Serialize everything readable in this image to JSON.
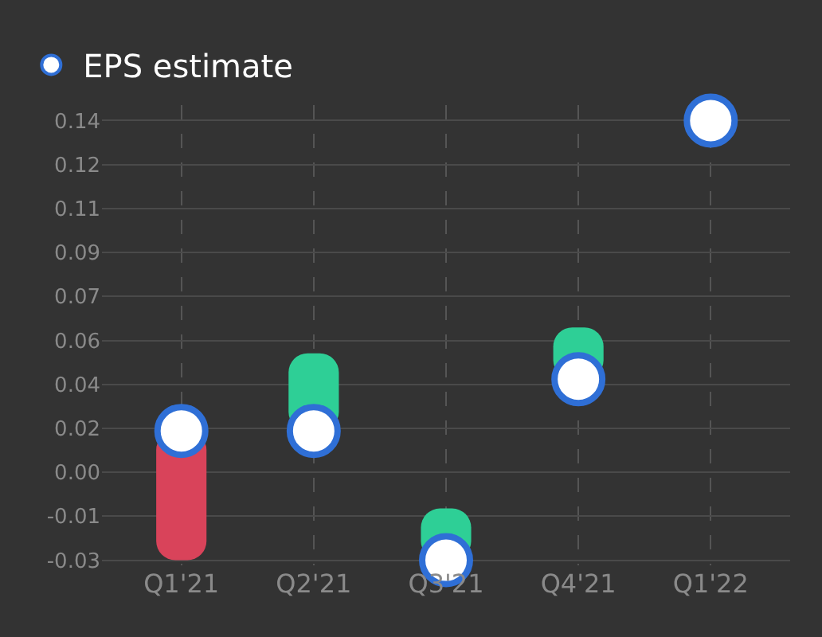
{
  "chart_data": {
    "type": "bar",
    "categories": [
      "Q1'21",
      "Q2'21",
      "Q3'21",
      "Q4'21",
      "Q1'22"
    ],
    "series": [
      {
        "base": [
          0.02,
          0.02,
          -0.03,
          0.04,
          null
        ],
        "values": [
          -0.05,
          0.03,
          0.02,
          0.02,
          null
        ],
        "colors": [
          "#d9435a",
          "#2ecf96",
          "#2ecf96",
          "#2ecf96",
          "#2ecf96"
        ]
      },
      {
        "type": "scatter",
        "name": "EPS estimate",
        "color": "#ffffff",
        "values": [
          0.02,
          0.02,
          -0.03,
          0.04,
          0.14
        ]
      }
    ],
    "ylim": [
      -0.032,
      0.146
    ],
    "yticks": [
      {
        "value": -0.03,
        "label": "-0.03"
      },
      {
        "value": -0.013,
        "label": "-0.01"
      },
      {
        "value": 0.004,
        "label": "0.00"
      },
      {
        "value": 0.021,
        "label": "0.02"
      },
      {
        "value": 0.038,
        "label": "0.04"
      },
      {
        "value": 0.055,
        "label": "0.06"
      },
      {
        "value": 0.072,
        "label": "0.07"
      },
      {
        "value": 0.089,
        "label": "0.09"
      },
      {
        "value": 0.106,
        "label": "0.11"
      },
      {
        "value": 0.123,
        "label": "0.12"
      },
      {
        "value": 0.14,
        "label": "0.14"
      }
    ],
    "grid": true,
    "legend": "top left",
    "marker": "circle"
  }
}
